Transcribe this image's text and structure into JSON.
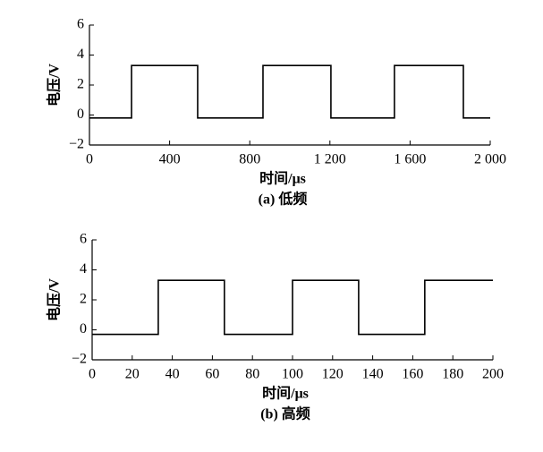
{
  "chart_data": [
    {
      "type": "line",
      "caption": "(a) 低频",
      "xlabel": "时间/μs",
      "ylabel": "电压/V",
      "color": "#000000",
      "x": [
        0,
        210,
        210,
        540,
        540,
        866,
        866,
        1205,
        1205,
        1522,
        1522,
        1866,
        1866,
        2000
      ],
      "values": [
        -0.2,
        -0.2,
        3.3,
        3.3,
        -0.2,
        -0.2,
        3.3,
        3.3,
        -0.2,
        -0.2,
        3.3,
        3.3,
        -0.2,
        -0.2
      ],
      "xlim": [
        0,
        2000
      ],
      "xticks": [
        0,
        400,
        800,
        {
          "value": 1200,
          "label": "1 200"
        },
        {
          "value": 1600,
          "label": "1 600"
        },
        {
          "value": 2000,
          "label": "2 000"
        }
      ],
      "ylim": [
        -2,
        6
      ],
      "yticks": [
        {
          "value": -2,
          "label": "−2"
        },
        0,
        2,
        4,
        6
      ]
    },
    {
      "type": "line",
      "caption": "(b) 高频",
      "xlabel": "时间/μs",
      "ylabel": "电压/V",
      "color": "#000000",
      "x": [
        0,
        33,
        33,
        66,
        66,
        100,
        100,
        133,
        133,
        166,
        166,
        200
      ],
      "values": [
        -0.3,
        -0.3,
        3.3,
        3.3,
        -0.3,
        -0.3,
        3.3,
        3.3,
        -0.3,
        -0.3,
        3.3,
        3.3
      ],
      "xlim": [
        0,
        200
      ],
      "xticks": [
        0,
        20,
        40,
        60,
        80,
        100,
        120,
        140,
        160,
        180,
        200
      ],
      "ylim": [
        -2,
        6
      ],
      "yticks": [
        {
          "value": -2,
          "label": "−2"
        },
        0,
        2,
        4,
        6
      ]
    }
  ]
}
